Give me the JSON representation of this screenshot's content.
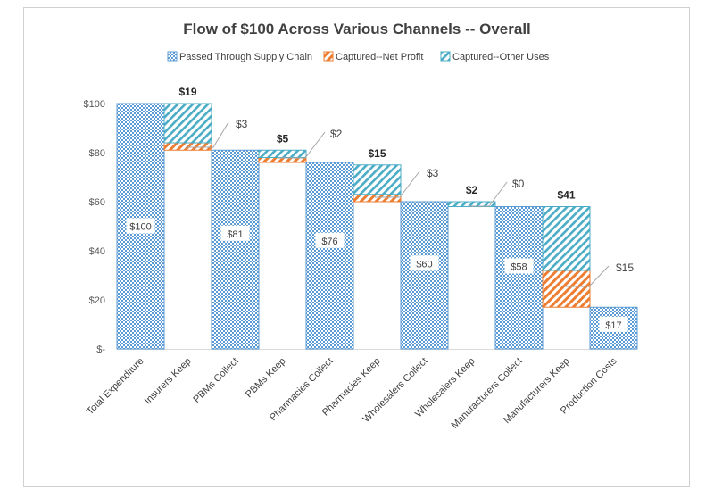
{
  "chart_data": {
    "type": "bar",
    "title": "Flow of $100 Across Various Channels -- Overall",
    "categories": [
      "Total Expenditure",
      "Insurers Keep",
      "PBMs Collect",
      "PBMs Keep",
      "Pharmacies Collect",
      "Pharmacies Keep",
      "Wholesalers Collect",
      "Wholesalers Keep",
      "Manufacturers Collect",
      "Manufacturers Keep",
      "Production Costs"
    ],
    "y_ticks": [
      "$-",
      "$20",
      "$40",
      "$60",
      "$80",
      "$100"
    ],
    "ylim": [
      0,
      100
    ],
    "legend_position": "top",
    "series": [
      {
        "name": "Passed Through Supply Chain",
        "color": "#5b9bd5",
        "values": [
          100,
          null,
          81,
          null,
          76,
          null,
          60,
          null,
          58,
          null,
          17
        ]
      },
      {
        "name": "Captured--Net Profit",
        "color": "#ed7d31",
        "values": [
          null,
          3,
          null,
          2,
          null,
          3,
          null,
          0,
          null,
          15,
          null
        ]
      },
      {
        "name": "Captured--Other Uses",
        "color": "#4bacc6",
        "values": [
          null,
          16,
          null,
          3,
          null,
          12,
          null,
          2,
          null,
          26,
          null
        ]
      }
    ],
    "keep_bases": [
      null,
      81,
      null,
      76,
      null,
      60,
      null,
      58,
      null,
      17,
      null
    ],
    "pass_labels": [
      "$100",
      null,
      "$81",
      null,
      "$76",
      null,
      "$60",
      null,
      "$58",
      null,
      "$17"
    ],
    "total_labels": [
      null,
      "$19",
      null,
      "$5",
      null,
      "$15",
      null,
      "$2",
      null,
      "$41",
      null
    ],
    "profit_labels": [
      null,
      "$3",
      null,
      "$2",
      null,
      "$3",
      null,
      "$0",
      null,
      "$15",
      null
    ]
  }
}
